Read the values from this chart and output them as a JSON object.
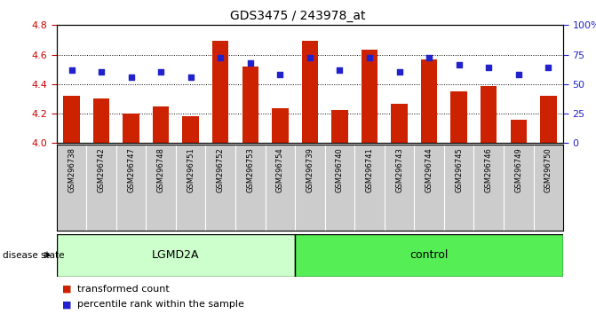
{
  "title": "GDS3475 / 243978_at",
  "samples": [
    "GSM296738",
    "GSM296742",
    "GSM296747",
    "GSM296748",
    "GSM296751",
    "GSM296752",
    "GSM296753",
    "GSM296754",
    "GSM296739",
    "GSM296740",
    "GSM296741",
    "GSM296743",
    "GSM296744",
    "GSM296745",
    "GSM296746",
    "GSM296749",
    "GSM296750"
  ],
  "bar_values": [
    4.32,
    4.3,
    4.2,
    4.245,
    4.18,
    4.695,
    4.52,
    4.235,
    4.695,
    4.225,
    4.635,
    4.265,
    4.565,
    4.35,
    4.385,
    4.16,
    4.32
  ],
  "dot_values": [
    62,
    60,
    56,
    60,
    56,
    72,
    68,
    58,
    72,
    62,
    72,
    60,
    72,
    66,
    64,
    58,
    64
  ],
  "bar_color": "#cc2200",
  "dot_color": "#2222cc",
  "ylim_left": [
    4.0,
    4.8
  ],
  "ylim_right": [
    0,
    100
  ],
  "yticks_left": [
    4.0,
    4.2,
    4.4,
    4.6,
    4.8
  ],
  "yticks_right": [
    0,
    25,
    50,
    75,
    100
  ],
  "ytick_labels_right": [
    "0",
    "25",
    "50",
    "75",
    "100%"
  ],
  "group1_label": "LGMD2A",
  "group2_label": "control",
  "group1_count": 8,
  "group2_count": 9,
  "disease_state_label": "disease state",
  "legend_bar_label": "transformed count",
  "legend_dot_label": "percentile rank within the sample",
  "group1_color": "#ccffcc",
  "group2_color": "#55ee55",
  "xlabel_color": "#cc0000",
  "ylabel_right_color": "#2222cc",
  "label_bg_color": "#cccccc",
  "background_color": "#ffffff"
}
